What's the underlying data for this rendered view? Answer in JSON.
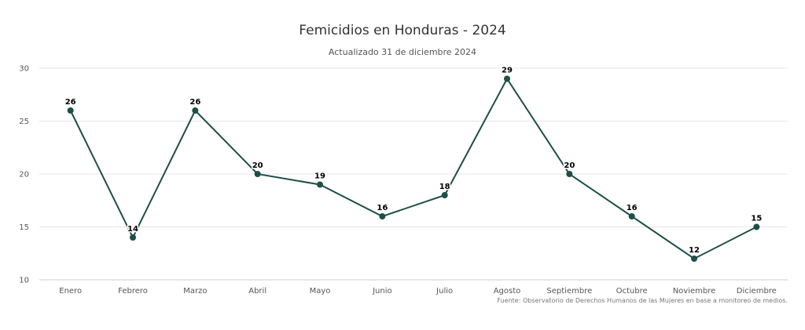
{
  "chart_data": {
    "type": "line",
    "title": "Femicidios en Honduras - 2024",
    "subtitle": "Actualizado 31 de diciembre 2024",
    "categories": [
      "Enero",
      "Febrero",
      "Marzo",
      "Abril",
      "Mayo",
      "Junio",
      "Julio",
      "Agosto",
      "Septiembre",
      "Octubre",
      "Noviembre",
      "Diciembre"
    ],
    "values": [
      26,
      14,
      26,
      20,
      19,
      16,
      18,
      29,
      20,
      16,
      12,
      15
    ],
    "ylim": [
      10,
      30
    ],
    "yticks": [
      "10",
      "15",
      "20",
      "25",
      "30"
    ],
    "grid": true,
    "legend": "none",
    "data_labels": true,
    "color": "#1d4f4a",
    "credits": "Fuente: Observatorio de Derechos Humanos de las Mujeres en base a monitoreo de medios."
  }
}
